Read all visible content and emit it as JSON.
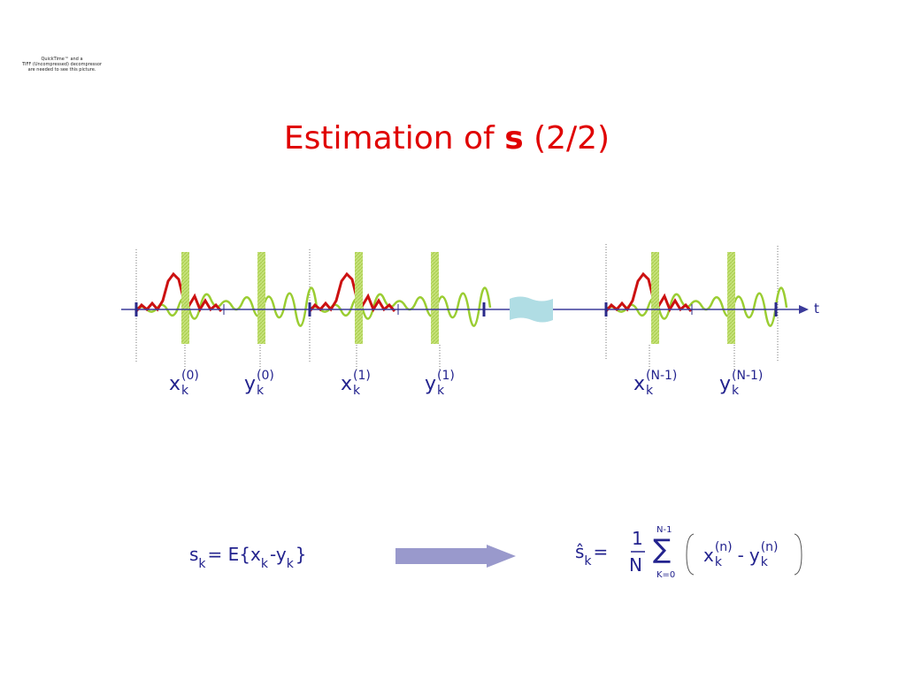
{
  "quicktime_notice": [
    "QuickTime™ and a",
    "TIFF (Uncompressed) decompressor",
    "are needed to see this picture."
  ],
  "title": {
    "text": "Estimation of",
    "bold": "s",
    "suffix": "(2/2)"
  },
  "timeline": {
    "axis_label": "t",
    "labels": [
      {
        "base": "x",
        "sub": "k",
        "sup": "(0)"
      },
      {
        "base": "y",
        "sub": "k",
        "sup": "(0)"
      },
      {
        "base": "x",
        "sub": "k",
        "sup": "(1)"
      },
      {
        "base": "y",
        "sub": "k",
        "sup": "(1)"
      },
      {
        "base": "x",
        "sub": "k",
        "sup": "(N-1)"
      },
      {
        "base": "y",
        "sub": "k",
        "sup": "(N-1)"
      }
    ]
  },
  "formula_left": {
    "lhs": "s",
    "lhs_sub": "k",
    "eq": "= E{",
    "x": "x",
    "x_sub": "k",
    "minus": "-",
    "y": "y",
    "y_sub": "k",
    "close": "}"
  },
  "formula_right": {
    "lhs": "ŝ",
    "lhs_sub": "k",
    "eq": "=",
    "numerator": "1",
    "denominator": "N",
    "sum": "∑",
    "sum_upper": "N-1",
    "sum_lower": "K=0",
    "x": "x",
    "x_sub": "k",
    "x_sup": "(n)",
    "minus": "-",
    "y": "y",
    "y_sub": "k",
    "y_sup": "(n)"
  }
}
